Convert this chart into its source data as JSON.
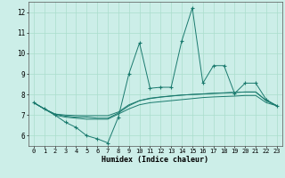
{
  "xlabel": "Humidex (Indice chaleur)",
  "background_color": "#cceee8",
  "grid_color": "#aaddcc",
  "line_color": "#1a7a6e",
  "xmin": -0.5,
  "xmax": 23.5,
  "ymin": 5.5,
  "ymax": 12.5,
  "yticks": [
    6,
    7,
    8,
    9,
    10,
    11,
    12
  ],
  "xticks": [
    0,
    1,
    2,
    3,
    4,
    5,
    6,
    7,
    8,
    9,
    10,
    11,
    12,
    13,
    14,
    15,
    16,
    17,
    18,
    19,
    20,
    21,
    22,
    23
  ],
  "series_plain": [
    [
      7.6,
      7.3,
      7.0,
      6.9,
      6.85,
      6.8,
      6.8,
      6.8,
      7.05,
      7.3,
      7.5,
      7.6,
      7.65,
      7.7,
      7.75,
      7.8,
      7.85,
      7.88,
      7.9,
      7.92,
      7.95,
      7.95,
      7.6,
      7.45
    ],
    [
      7.6,
      7.3,
      7.05,
      6.95,
      6.9,
      6.9,
      6.85,
      6.85,
      7.1,
      7.45,
      7.7,
      7.82,
      7.88,
      7.93,
      7.97,
      8.0,
      8.02,
      8.05,
      8.07,
      8.1,
      8.12,
      8.12,
      7.7,
      7.45
    ],
    [
      7.6,
      7.3,
      7.05,
      7.0,
      6.98,
      6.97,
      6.97,
      6.97,
      7.15,
      7.5,
      7.7,
      7.8,
      7.87,
      7.92,
      7.97,
      8.0,
      8.03,
      8.06,
      8.08,
      8.1,
      8.12,
      8.12,
      7.7,
      7.45
    ]
  ],
  "series_marked": [
    7.6,
    7.3,
    7.0,
    6.65,
    6.4,
    6.0,
    5.85,
    5.65,
    6.9,
    9.0,
    10.5,
    8.3,
    8.35,
    8.35,
    10.6,
    12.2,
    8.55,
    9.4,
    9.4,
    8.05,
    8.55,
    8.55,
    7.75,
    7.45
  ]
}
